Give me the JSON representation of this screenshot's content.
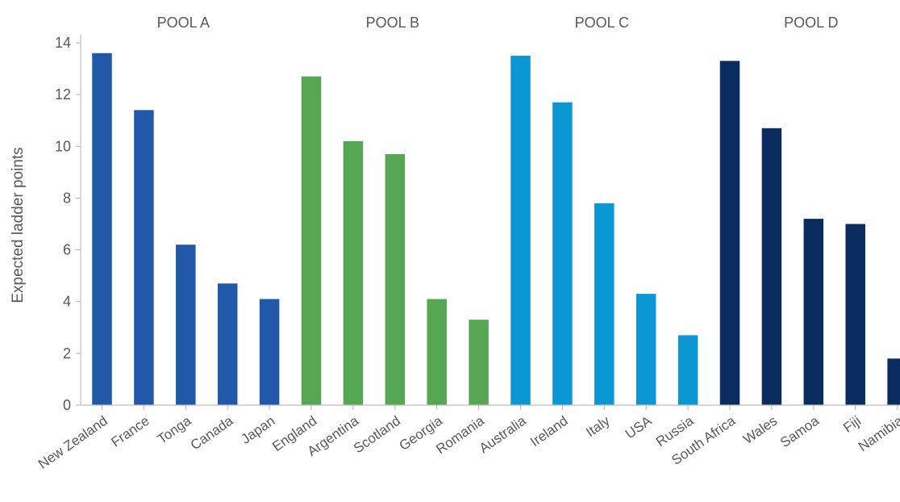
{
  "chart_data": {
    "type": "bar",
    "title": "",
    "xlabel": "",
    "ylabel": "Expected ladder points",
    "ylim": [
      0,
      14
    ],
    "yticks": [
      0,
      2,
      4,
      6,
      8,
      10,
      12,
      14
    ],
    "grid": false,
    "legend": "none",
    "groups": [
      {
        "name": "POOL A",
        "color": "#2158A8",
        "categories": [
          "New Zealand",
          "France",
          "Tonga",
          "Canada",
          "Japan"
        ],
        "values": [
          13.6,
          11.4,
          6.2,
          4.7,
          4.1
        ]
      },
      {
        "name": "POOL B",
        "color": "#56A753",
        "categories": [
          "England",
          "Argentina",
          "Scotland",
          "Georgia",
          "Romania"
        ],
        "values": [
          12.7,
          10.2,
          9.7,
          4.1,
          3.3
        ]
      },
      {
        "name": "POOL C",
        "color": "#0A97D4",
        "categories": [
          "Australia",
          "Ireland",
          "Italy",
          "USA",
          "Russia"
        ],
        "values": [
          13.5,
          11.7,
          7.8,
          4.3,
          2.7
        ]
      },
      {
        "name": "POOL D",
        "color": "#0A2C5E",
        "categories": [
          "South Africa",
          "Wales",
          "Samoa",
          "Fiji",
          "Namibia"
        ],
        "values": [
          13.3,
          10.7,
          7.2,
          7.0,
          1.8
        ]
      }
    ]
  }
}
